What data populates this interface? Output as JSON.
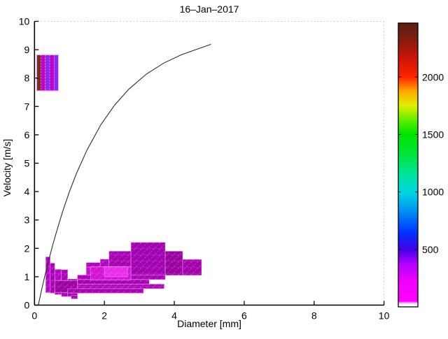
{
  "title": "16–Jan–2017",
  "axes": {
    "xlabel": "Diameter [mm]",
    "ylabel": "Velocity [m/s]",
    "xlim": [
      0,
      10
    ],
    "ylim": [
      0,
      10
    ],
    "xticks": [
      0,
      2,
      4,
      6,
      8,
      10
    ],
    "yticks": [
      0,
      1,
      2,
      3,
      4,
      5,
      6,
      7,
      8,
      9,
      10
    ]
  },
  "colorbar": {
    "range": [
      0,
      2470
    ],
    "ticks": [
      500,
      1000,
      1500,
      2000
    ],
    "stops": [
      [
        0.0,
        "#ffffff"
      ],
      [
        0.01,
        "#ffffff"
      ],
      [
        0.02,
        "#ff00ff"
      ],
      [
        0.09,
        "#ee00fa"
      ],
      [
        0.15,
        "#b400ff"
      ],
      [
        0.2,
        "#4400e6"
      ],
      [
        0.26,
        "#0030ff"
      ],
      [
        0.33,
        "#0088f4"
      ],
      [
        0.4,
        "#00d4e4"
      ],
      [
        0.47,
        "#00e49c"
      ],
      [
        0.54,
        "#00e434"
      ],
      [
        0.61,
        "#00e400"
      ],
      [
        0.66,
        "#66ee00"
      ],
      [
        0.71,
        "#e0ee00"
      ],
      [
        0.76,
        "#ffa800"
      ],
      [
        0.81,
        "#ff2400"
      ],
      [
        0.88,
        "#c81408"
      ],
      [
        0.95,
        "#7c1e10"
      ],
      [
        1.0,
        "#5a1e10"
      ]
    ]
  },
  "chart_data": {
    "type": "heatmap",
    "title": "16–Jan–2017",
    "xlabel": "Diameter [mm]",
    "ylabel": "Velocity [m/s]",
    "xlim": [
      0,
      10
    ],
    "ylim": [
      0,
      10
    ],
    "grid": false,
    "colorbar_range": [
      0,
      2470
    ],
    "terminal_velocity_curve": {
      "color": "#2b2b2b",
      "points": [
        [
          0.11,
          0.0
        ],
        [
          0.2,
          0.52
        ],
        [
          0.3,
          1.05
        ],
        [
          0.4,
          1.55
        ],
        [
          0.5,
          2.02
        ],
        [
          0.6,
          2.46
        ],
        [
          0.8,
          3.28
        ],
        [
          1.0,
          4.0
        ],
        [
          1.2,
          4.64
        ],
        [
          1.5,
          5.46
        ],
        [
          1.9,
          6.36
        ],
        [
          2.3,
          7.06
        ],
        [
          2.7,
          7.61
        ],
        [
          3.2,
          8.14
        ],
        [
          3.7,
          8.53
        ],
        [
          4.2,
          8.82
        ],
        [
          4.7,
          9.04
        ],
        [
          5.05,
          9.19
        ]
      ]
    },
    "cells": [
      {
        "x": 0.32,
        "y": 0.44,
        "w": 0.13,
        "h": 1.26,
        "c": "#b106c4",
        "v": 200
      },
      {
        "x": 0.45,
        "y": 0.42,
        "w": 0.13,
        "h": 1.06,
        "c": "#a505b2",
        "v": 250
      },
      {
        "x": 0.58,
        "y": 0.37,
        "w": 0.19,
        "h": 0.89,
        "c": "#b207c2",
        "v": 200
      },
      {
        "x": 0.77,
        "y": 0.3,
        "w": 0.18,
        "h": 0.95,
        "c": "#a605b4",
        "v": 250
      },
      {
        "x": 0.95,
        "y": 0.3,
        "w": 0.28,
        "h": 0.62,
        "c": "#9f04ac",
        "v": 300
      },
      {
        "x": 1.05,
        "y": 0.22,
        "w": 0.18,
        "h": 0.12,
        "c": "#a505b2",
        "v": 250
      },
      {
        "x": 0.58,
        "y": 0.44,
        "w": 0.66,
        "h": 0.42,
        "c": "#99039f",
        "v": 350
      },
      {
        "x": 1.23,
        "y": 0.42,
        "w": 0.25,
        "h": 0.6,
        "c": "#b407c6",
        "v": 180
      },
      {
        "x": 1.48,
        "y": 0.45,
        "w": 0.4,
        "h": 1.05,
        "c": "#ac06ba",
        "v": 230
      },
      {
        "x": 1.48,
        "y": 1.06,
        "w": 0.25,
        "h": 0.28,
        "c": "#c70bd2",
        "v": 120
      },
      {
        "x": 1.88,
        "y": 0.5,
        "w": 0.25,
        "h": 1.12,
        "c": "#b007c0",
        "v": 210
      },
      {
        "x": 2.13,
        "y": 0.55,
        "w": 0.63,
        "h": 1.35,
        "c": "#a506b2",
        "v": 260
      },
      {
        "x": 2.76,
        "y": 0.9,
        "w": 0.98,
        "h": 1.31,
        "c": "#a004ae",
        "v": 300
      },
      {
        "x": 3.74,
        "y": 1.05,
        "w": 0.5,
        "h": 0.85,
        "c": "#98039e",
        "v": 360
      },
      {
        "x": 4.24,
        "y": 1.05,
        "w": 0.54,
        "h": 0.56,
        "c": "#a104ab",
        "v": 300
      },
      {
        "x": 1.23,
        "y": 0.9,
        "w": 2.51,
        "h": 0.16,
        "c": "#aa05b6",
        "v": 240
      },
      {
        "x": 1.23,
        "y": 0.74,
        "w": 2.05,
        "h": 0.16,
        "c": "#a304ae",
        "v": 280
      },
      {
        "x": 1.23,
        "y": 0.58,
        "w": 2.48,
        "h": 0.16,
        "c": "#ad06b8",
        "v": 230
      },
      {
        "x": 0.95,
        "y": 0.42,
        "w": 2.17,
        "h": 0.16,
        "c": "#a505b0",
        "v": 260
      },
      {
        "x": 1.61,
        "y": 0.88,
        "w": 1.15,
        "h": 0.48,
        "c": "#d315d3",
        "v": 100
      },
      {
        "x": 2.0,
        "y": 1.0,
        "w": 0.66,
        "h": 0.36,
        "c": "#e82ee8",
        "v": 60
      }
    ],
    "upper_patch": {
      "y": 7.55,
      "h": 1.27,
      "cells": [
        {
          "x": 0.06,
          "w": 0.125,
          "c": "#763020",
          "v": 2350
        },
        {
          "x": 0.185,
          "w": 0.125,
          "c": "#c303c3",
          "v": 150
        },
        {
          "x": 0.31,
          "w": 0.125,
          "c": "#8a2aee",
          "v": 420
        },
        {
          "x": 0.435,
          "w": 0.125,
          "c": "#b806d0",
          "v": 220
        },
        {
          "x": 0.56,
          "w": 0.125,
          "c": "#9127ec",
          "v": 400
        }
      ]
    }
  }
}
